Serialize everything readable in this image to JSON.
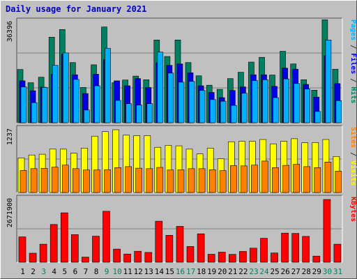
{
  "title": "Daily usage for January 2021",
  "chart_data": [
    {
      "type": "bar",
      "panel": "hits",
      "ymax_label": "36396",
      "ymax": 36396,
      "right_label": [
        {
          "text": "Pages",
          "color": "#00b0ff"
        },
        {
          "text": " / ",
          "color": "#333333"
        },
        {
          "text": "Files",
          "color": "#0000e0"
        },
        {
          "text": " / ",
          "color": "#333333"
        },
        {
          "text": "Hits",
          "color": "#008060"
        }
      ],
      "colors": {
        "hits": "#008060",
        "files": "#0000e0",
        "pages": "#00b0ff"
      },
      "categories": [
        "1",
        "2",
        "3",
        "4",
        "5",
        "6",
        "7",
        "8",
        "9",
        "10",
        "11",
        "12",
        "13",
        "14",
        "15",
        "16",
        "17",
        "18",
        "19",
        "20",
        "21",
        "22",
        "23",
        "24",
        "25",
        "26",
        "27",
        "28",
        "29",
        "30",
        "31"
      ],
      "series": [
        {
          "name": "Hits",
          "values": [
            19300,
            14500,
            16500,
            31000,
            33800,
            21800,
            12800,
            21000,
            34700,
            14500,
            15500,
            16900,
            15600,
            30000,
            24000,
            30000,
            21800,
            17000,
            13600,
            12100,
            16000,
            18300,
            22000,
            23700,
            17300,
            25900,
            21300,
            15600,
            11800,
            37300,
            19400
          ]
        },
        {
          "name": "Files",
          "values": [
            15200,
            11600,
            12900,
            17600,
            24900,
            17400,
            10600,
            17600,
            22900,
            15200,
            13400,
            16000,
            12800,
            21700,
            20800,
            21300,
            18100,
            13400,
            11000,
            9100,
            11700,
            13000,
            17400,
            17400,
            13200,
            19800,
            19400,
            13900,
            9300,
            24300,
            14200
          ]
        },
        {
          "name": "Pages",
          "values": [
            13000,
            7300,
            12800,
            20800,
            25300,
            15700,
            4600,
            13400,
            27000,
            8100,
            6900,
            6400,
            6900,
            25600,
            18000,
            14700,
            15000,
            11700,
            8400,
            7800,
            6300,
            10700,
            15300,
            15600,
            9100,
            15900,
            14200,
            12200,
            4100,
            30000,
            8000
          ]
        }
      ]
    },
    {
      "type": "bar",
      "panel": "sites_visits",
      "ymax_label": "1237",
      "ymax": 1237,
      "right_label": [
        {
          "text": "Sites",
          "color": "#ff8000"
        },
        {
          "text": " / ",
          "color": "#333333"
        },
        {
          "text": "Visits",
          "color": "#ffff00"
        }
      ],
      "colors": {
        "visits": "#ffff00",
        "sites": "#ff8000"
      },
      "categories": [
        "1",
        "2",
        "3",
        "4",
        "5",
        "6",
        "7",
        "8",
        "9",
        "10",
        "11",
        "12",
        "13",
        "14",
        "15",
        "16",
        "17",
        "18",
        "19",
        "20",
        "21",
        "22",
        "23",
        "24",
        "25",
        "26",
        "27",
        "28",
        "29",
        "30",
        "31"
      ],
      "series": [
        {
          "name": "Visits",
          "values": [
            680,
            740,
            755,
            855,
            855,
            775,
            875,
            1110,
            1200,
            1237,
            1130,
            1120,
            1120,
            890,
            930,
            920,
            855,
            760,
            875,
            665,
            1000,
            1010,
            1010,
            1045,
            960,
            1010,
            1060,
            980,
            985,
            1045,
            710
          ]
        },
        {
          "name": "Sites",
          "values": [
            435,
            470,
            475,
            500,
            540,
            470,
            445,
            445,
            450,
            490,
            510,
            480,
            470,
            495,
            445,
            450,
            470,
            470,
            450,
            430,
            530,
            525,
            540,
            620,
            490,
            535,
            555,
            510,
            490,
            600,
            420
          ]
        }
      ]
    },
    {
      "type": "bar",
      "panel": "kbytes",
      "ymax_label": "2671900",
      "ymax": 2671900,
      "right_label": [
        {
          "text": "KBytes",
          "color": "#ff0000"
        }
      ],
      "colors": {
        "kbytes": "#ff0000"
      },
      "categories": [
        "1",
        "2",
        "3",
        "4",
        "5",
        "6",
        "7",
        "8",
        "9",
        "10",
        "11",
        "12",
        "13",
        "14",
        "15",
        "16",
        "17",
        "18",
        "19",
        "20",
        "21",
        "22",
        "23",
        "24",
        "25",
        "26",
        "27",
        "28",
        "29",
        "30",
        "31"
      ],
      "series": [
        {
          "name": "KBytes",
          "values": [
            1080000,
            385000,
            770000,
            1610000,
            2105000,
            1180000,
            220000,
            1110000,
            2170000,
            560000,
            350000,
            470000,
            420000,
            1750000,
            1150000,
            1530000,
            670000,
            1210000,
            340000,
            430000,
            335000,
            460000,
            600000,
            1020000,
            395000,
            1240000,
            1230000,
            1100000,
            260000,
            2671900,
            770000
          ]
        }
      ]
    }
  ],
  "x_axis": {
    "labels": [
      "1",
      "2",
      "3",
      "4",
      "5",
      "6",
      "7",
      "8",
      "9",
      "10",
      "11",
      "12",
      "13",
      "14",
      "15",
      "16",
      "17",
      "18",
      "19",
      "20",
      "21",
      "22",
      "23",
      "24",
      "25",
      "26",
      "27",
      "28",
      "29",
      "30",
      "31"
    ],
    "weekend_days": [
      3,
      9,
      10,
      16,
      17,
      23,
      24,
      30,
      31
    ],
    "weekday_color": "#000000",
    "weekend_color": "#008060"
  }
}
